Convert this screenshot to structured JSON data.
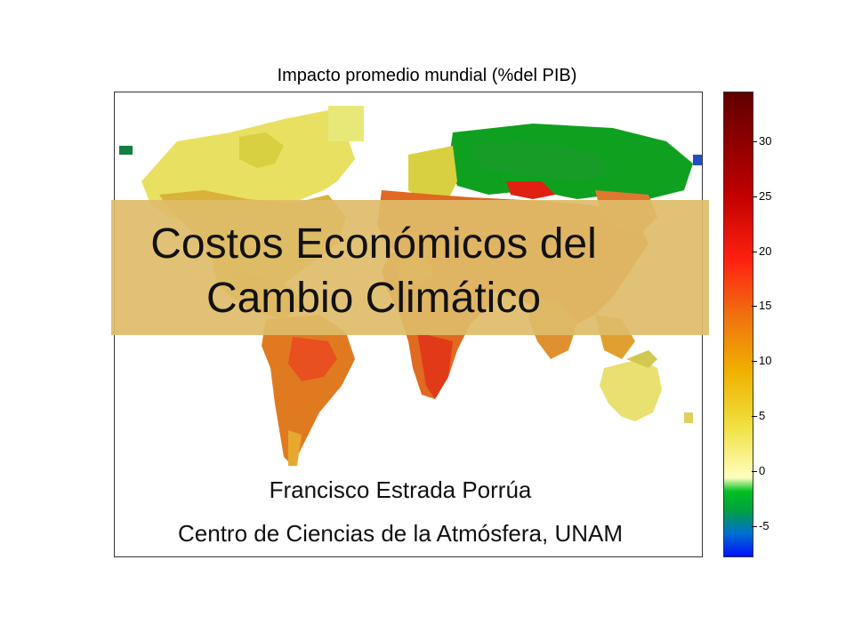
{
  "figure": {
    "title": "Impacto promedio mundial (%del PIB)"
  },
  "slide": {
    "title_line1": "Costos Económicos del",
    "title_line2": "Cambio Climático",
    "author": "Francisco Estrada Porrúa",
    "affiliation": "Centro de Ciencias de la Atmósfera, UNAM",
    "band_color": "#debc69"
  },
  "colorbar": {
    "ticks": [
      "30",
      "25",
      "20",
      "15",
      "10",
      "5",
      "0",
      "-5"
    ],
    "colors": [
      "#0000ff",
      "#0080ff",
      "#00c000",
      "#ffffc0",
      "#f0e000",
      "#f0a000",
      "#ff4000",
      "#c00000",
      "#600000"
    ]
  }
}
